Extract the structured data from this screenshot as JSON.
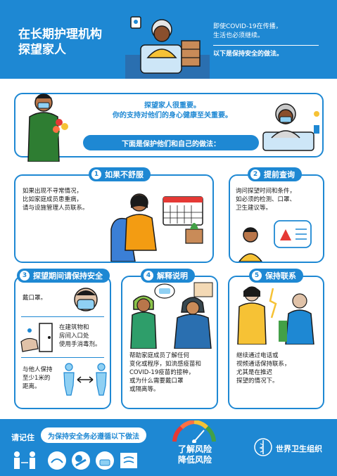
{
  "header": {
    "title_line1": "在长期护理机构",
    "title_line2": "探望家人",
    "note_line1": "即使COVID-19在传播，",
    "note_line2": "生活也必须继续。",
    "note_line3": "以下是保持安全的做法。"
  },
  "intro": {
    "line1": "探望家人很重要。",
    "line2": "你的支持对他们的身心健康至关重要。",
    "banner": "下面是保护他们和自己的做法："
  },
  "steps": [
    {
      "num": "1",
      "title": "如果不舒服",
      "text_lines": [
        "如果出现不寻常情况，",
        "比如家庭成员患重病，",
        "请与设施管理人员联系。"
      ]
    },
    {
      "num": "2",
      "title": "提前查询",
      "text_lines": [
        "询问探望时间和条件，",
        "如必须的检测、口罩、",
        "卫生建议等。"
      ]
    },
    {
      "num": "3",
      "title": "探望期间请保持安全",
      "items": [
        {
          "lines": [
            "戴口罩。"
          ]
        },
        {
          "lines": [
            "在建筑物和",
            "房间入口处",
            "使用手消毒剂。"
          ]
        },
        {
          "lines": [
            "与他人保持",
            "至少1米的",
            "距离。"
          ]
        }
      ]
    },
    {
      "num": "4",
      "title": "解释说明",
      "text_lines": [
        "帮助家庭成员了解任何",
        "变化或程序，如流感疫苗和",
        "COVID-19疫苗的接种，",
        "或为什么需要戴口罩",
        "或隔离等。"
      ]
    },
    {
      "num": "5",
      "title": "保持联系",
      "text_lines": [
        "继续通过电话或",
        "视频通话保持联系，",
        "尤其是在推迟",
        "探望的情况下。"
      ]
    }
  ],
  "footer": {
    "remember": "请记住",
    "banner": "为保持安全务必遵循以下做法",
    "risk_line1": "了解风险",
    "risk_line2": "降低风险",
    "org": "世界卫生组织"
  },
  "colors": {
    "primary": "#1e88d3",
    "accent_red": "#e53935",
    "accent_yellow": "#f6c235",
    "skin": "#b9764a"
  }
}
